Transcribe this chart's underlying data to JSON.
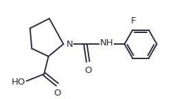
{
  "background_color": "#ffffff",
  "line_color": "#2a2a3e",
  "line_width": 1.4,
  "text_color": "#2a2a3e",
  "font_size": 8.5,
  "label_N": "N",
  "label_NH": "NH",
  "label_O": "O",
  "label_HO": "HO",
  "label_F": "F",
  "figsize": [
    2.77,
    1.44
  ],
  "dpi": 100,
  "xlim": [
    0,
    10
  ],
  "ylim": [
    0,
    5.2
  ]
}
